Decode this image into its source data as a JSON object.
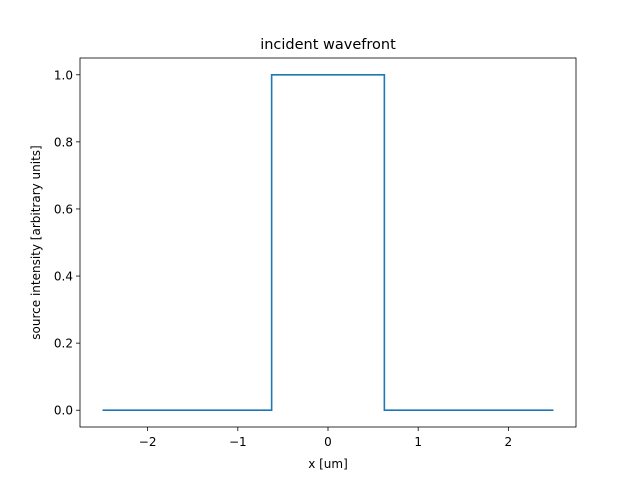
{
  "chart_data": {
    "type": "line",
    "title": "incident wavefront",
    "xlabel": "x [um]",
    "ylabel": "source intensity [arbitrary units]",
    "xlim": [
      -2.75,
      2.75
    ],
    "ylim": [
      -0.05,
      1.05
    ],
    "x_ticks": [
      -2,
      -1,
      0,
      1,
      2
    ],
    "x_tick_labels": [
      "−2",
      "−1",
      "0",
      "1",
      "2"
    ],
    "y_ticks": [
      0.0,
      0.2,
      0.4,
      0.6,
      0.8,
      1.0
    ],
    "y_tick_labels": [
      "0.0",
      "0.2",
      "0.4",
      "0.6",
      "0.8",
      "1.0"
    ],
    "grid": false,
    "series": [
      {
        "color": "#1f77b4",
        "x": [
          -2.5,
          -0.625,
          -0.625,
          0.625,
          0.625,
          2.5
        ],
        "y": [
          0.0,
          0.0,
          1.0,
          1.0,
          0.0,
          0.0
        ]
      }
    ]
  }
}
